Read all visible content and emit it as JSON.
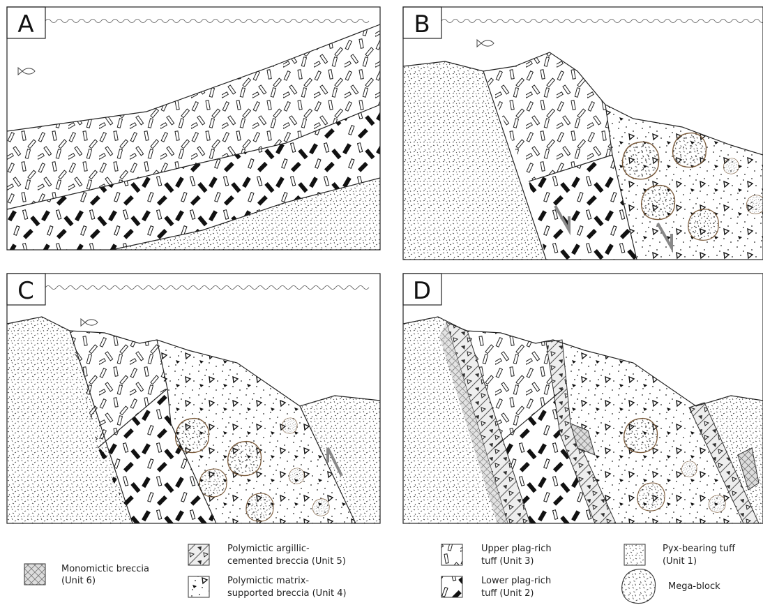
{
  "panels": [
    {
      "label": "A"
    },
    {
      "label": "B"
    },
    {
      "label": "C"
    },
    {
      "label": "D"
    }
  ],
  "legend": [
    {
      "lines": [
        "Monomictic breccia",
        "(Unit 6)"
      ]
    },
    {
      "lines": [
        "Polymictic argillic-",
        "cemented breccia (Unit 5)"
      ]
    },
    {
      "lines": [
        "Polymictic matrix-",
        "supported breccia (Unit 4)"
      ]
    },
    {
      "lines": [
        "Upper plag-rich",
        "tuff (Unit 3)"
      ]
    },
    {
      "lines": [
        "Lower plag-rich",
        "tuff (Unit 2)"
      ]
    },
    {
      "lines": [
        "Pyx-bearing tuff",
        "(Unit 1)"
      ]
    },
    {
      "lines": [
        "Mega-block"
      ]
    }
  ]
}
